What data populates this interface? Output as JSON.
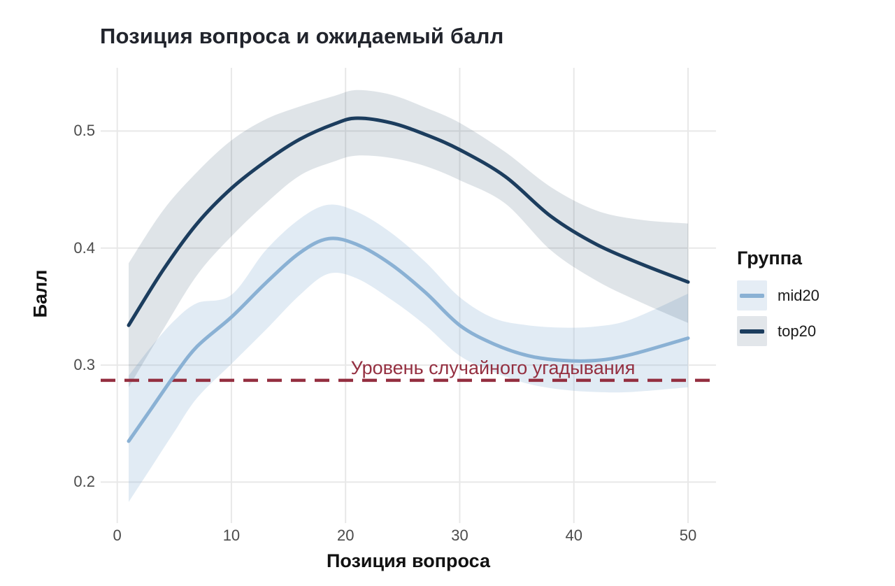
{
  "title": "Позиция вопроса и ожидаемый балл",
  "x_axis": {
    "label": "Позиция вопроса",
    "tick_labels": [
      "0",
      "10",
      "20",
      "30",
      "40",
      "50"
    ]
  },
  "y_axis": {
    "label": "Балл",
    "tick_labels": [
      "0.2",
      "0.3",
      "0.4",
      "0.5"
    ]
  },
  "legend": {
    "title": "Группа",
    "entries": [
      "mid20",
      "top20"
    ]
  },
  "annotation": {
    "text": "Уровень случайного угадывания",
    "y": 0.287
  },
  "colors": {
    "background": "#ffffff",
    "grid": "#e8e8e8",
    "tick_label": "#4b4b4b",
    "title": "#21242c",
    "axis_title": "#111111",
    "reference_line": "#942f40",
    "mid20_line": "#8ab1d4",
    "top20_line": "#1c3d5e"
  },
  "chart_data": {
    "type": "line",
    "title": "Позиция вопроса и ожидаемый балл",
    "xlabel": "Позиция вопроса",
    "ylabel": "Балл",
    "xlim": [
      -1.45,
      52.45
    ],
    "ylim": [
      0.165,
      0.554
    ],
    "x_ticks": [
      0,
      10,
      20,
      30,
      40,
      50
    ],
    "y_ticks": [
      0.2,
      0.3,
      0.4,
      0.5
    ],
    "grid": true,
    "smooth": true,
    "confidence_bands": true,
    "legend_position": "right",
    "legend_title": "Группа",
    "reference_line": {
      "y": 0.287,
      "style": "dashed",
      "color": "#942f40",
      "label": "Уровень случайного угадывания"
    },
    "series": [
      {
        "name": "mid20",
        "color": "#8ab1d4",
        "band_rgba": "rgba(141,178,213,0.26)",
        "legend_fill": "#e5edf5",
        "x": [
          1,
          3,
          5,
          7,
          10,
          13,
          16,
          18.5,
          21,
          24,
          27,
          30,
          33,
          36,
          39,
          42,
          45,
          50
        ],
        "y": [
          0.235,
          0.263,
          0.291,
          0.316,
          0.341,
          0.37,
          0.396,
          0.408,
          0.403,
          0.386,
          0.362,
          0.334,
          0.318,
          0.308,
          0.304,
          0.304,
          0.309,
          0.323
        ],
        "band_upper": [
          0.291,
          0.316,
          0.338,
          0.353,
          0.36,
          0.398,
          0.425,
          0.437,
          0.431,
          0.413,
          0.388,
          0.358,
          0.34,
          0.334,
          0.332,
          0.333,
          0.339,
          0.361
        ],
        "band_lower": [
          0.183,
          0.213,
          0.243,
          0.272,
          0.301,
          0.33,
          0.36,
          0.378,
          0.374,
          0.356,
          0.334,
          0.308,
          0.294,
          0.284,
          0.279,
          0.277,
          0.277,
          0.281
        ]
      },
      {
        "name": "top20",
        "color": "#1c3d5e",
        "band_rgba": "rgba(28,61,94,0.14)",
        "legend_fill": "#e2e6ea",
        "x": [
          1,
          4,
          7,
          10,
          13,
          16,
          19,
          21,
          24,
          27,
          30,
          34,
          38,
          42,
          46,
          50
        ],
        "y": [
          0.334,
          0.381,
          0.421,
          0.451,
          0.474,
          0.493,
          0.506,
          0.511,
          0.507,
          0.497,
          0.484,
          0.461,
          0.427,
          0.403,
          0.386,
          0.371
        ],
        "band_upper": [
          0.387,
          0.432,
          0.465,
          0.492,
          0.51,
          0.521,
          0.53,
          0.535,
          0.531,
          0.52,
          0.507,
          0.482,
          0.452,
          0.432,
          0.424,
          0.421
        ],
        "band_lower": [
          0.281,
          0.33,
          0.377,
          0.41,
          0.438,
          0.462,
          0.474,
          0.479,
          0.477,
          0.47,
          0.458,
          0.438,
          0.398,
          0.372,
          0.353,
          0.336
        ]
      }
    ]
  }
}
